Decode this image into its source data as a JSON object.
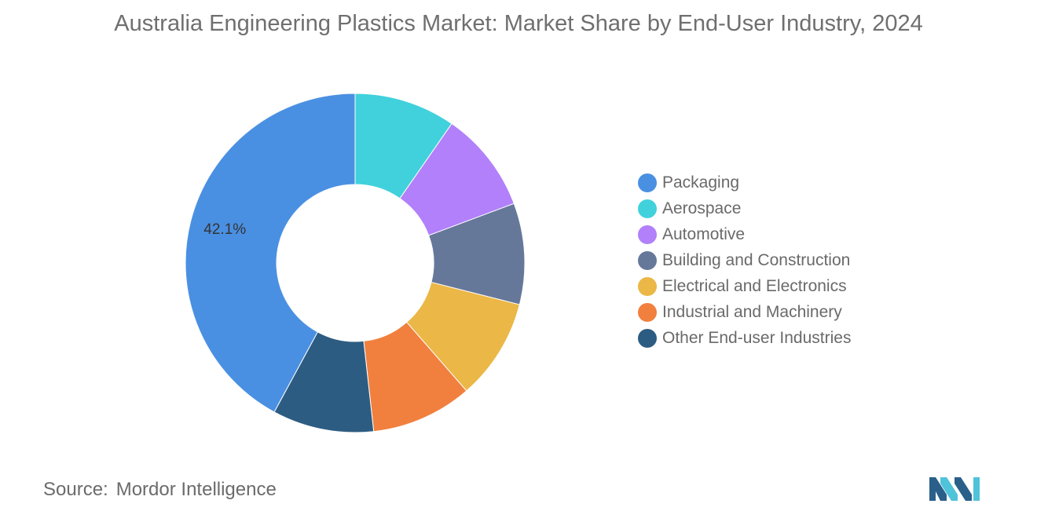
{
  "title": "Australia Engineering Plastics Market: Market Share by End-User Industry, 2024",
  "chart_data": {
    "type": "pie",
    "donut": true,
    "title": "Australia Engineering Plastics Market: Market Share by End-User Industry, 2024",
    "categories": [
      "Packaging",
      "Aerospace",
      "Automotive",
      "Building and Construction",
      "Electrical and Electronics",
      "Industrial and Machinery",
      "Other End-user Industries"
    ],
    "values": [
      42.1,
      9.65,
      9.65,
      9.65,
      9.65,
      9.65,
      9.65
    ],
    "colors": [
      "#4a90e2",
      "#41d1dc",
      "#b180fa",
      "#66789a",
      "#ebb746",
      "#f1803e",
      "#2d5c82"
    ],
    "data_labels": [
      "42.1%",
      "",
      "",
      "",
      "",
      "",
      ""
    ],
    "legend_position": "right"
  },
  "legend": [
    {
      "label": "Packaging",
      "color": "#4a90e2"
    },
    {
      "label": "Aerospace",
      "color": "#41d1dc"
    },
    {
      "label": "Automotive",
      "color": "#b180fa"
    },
    {
      "label": "Building and Construction",
      "color": "#66789a"
    },
    {
      "label": "Electrical and Electronics",
      "color": "#ebb746"
    },
    {
      "label": "Industrial and Machinery",
      "color": "#f1803e"
    },
    {
      "label": "Other End-user Industries",
      "color": "#2d5c82"
    }
  ],
  "source": {
    "key": "Source:",
    "value": "Mordor Intelligence"
  },
  "logo": {
    "icon": "mordor-intelligence-logo",
    "colors": [
      "#2a5f8a",
      "#4fc3d9"
    ]
  }
}
